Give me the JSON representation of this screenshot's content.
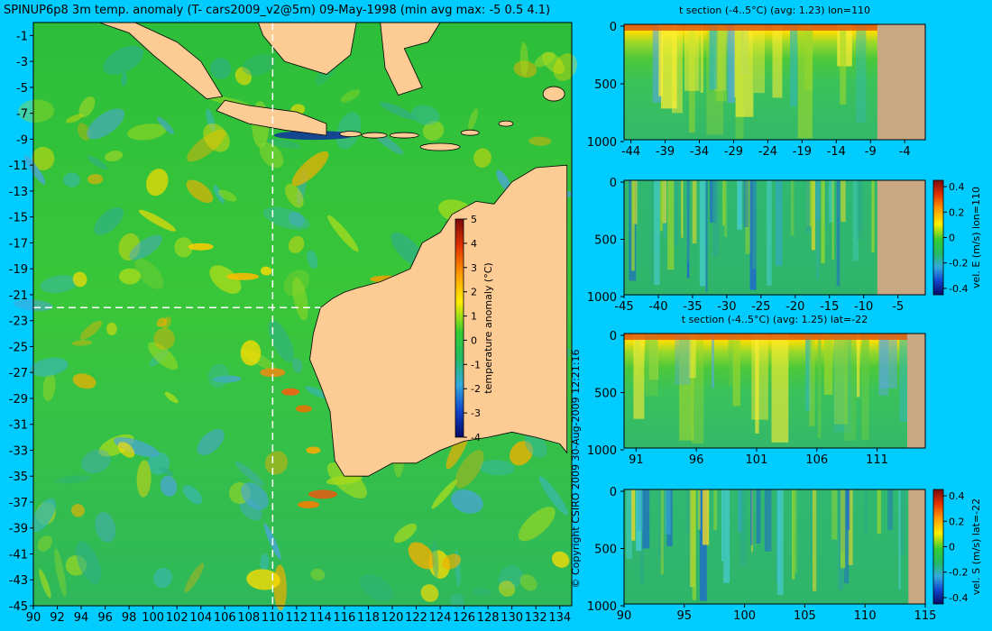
{
  "title": "SPINUP6p8 3m temp. anomaly (T- cars2009_v2@5m) 09-May-1998 (min avg max: -5 0.5 4.1)",
  "copyright": "© Copyright CSIRO 2009   30-Aug-2009 12:21:16",
  "colors": {
    "background": "#00ccff",
    "land": "#fdcb94",
    "section_land": "#c8a882",
    "ocean": "#36c636"
  },
  "chart_data": [
    {
      "type": "heatmap",
      "name": "map",
      "title": "SPINUP6p8 3m temp. anomaly (T- cars2009_v2@5m) 09-May-1998 (min avg max: -5 0.5 4.1)",
      "x_ticks": [
        "90",
        "92",
        "94",
        "96",
        "98",
        "100",
        "102",
        "104",
        "106",
        "108",
        "110",
        "112",
        "114",
        "116",
        "118",
        "120",
        "122",
        "124",
        "126",
        "128",
        "130",
        "132",
        "134"
      ],
      "y_ticks": [
        "-1",
        "-3",
        "-5",
        "-7",
        "-9",
        "-11",
        "-13",
        "-15",
        "-17",
        "-19",
        "-21",
        "-23",
        "-25",
        "-27",
        "-29",
        "-31",
        "-33",
        "-35",
        "-37",
        "-39",
        "-41",
        "-43",
        "-45"
      ],
      "xlim": [
        90,
        135
      ],
      "ylim": [
        -45,
        0
      ],
      "section_lon": 110,
      "section_lat": -22,
      "stats": {
        "min": -5,
        "avg": 0.5,
        "max": 4.1
      },
      "colorbar": {
        "label": "temperature anomaly (°C)",
        "ticks": [
          "5",
          "4",
          "3",
          "2",
          "1",
          "0",
          "-1",
          "-2",
          "-3",
          "-4"
        ],
        "range": [
          -4,
          5
        ]
      }
    },
    {
      "type": "heatmap",
      "name": "t-section-lon110",
      "title": "t section (-4..5°C)  (avg: 1.23)  lon=110",
      "x_ticks": [
        "-44",
        "-39",
        "-34",
        "-29",
        "-24",
        "-19",
        "-14",
        "-9",
        "-4"
      ],
      "y_ticks": [
        "0",
        "500",
        "1000"
      ],
      "xlim": [
        -45,
        -1
      ],
      "ylim": [
        1000,
        0
      ]
    },
    {
      "type": "heatmap",
      "name": "vel-e-lon110",
      "title": "",
      "x_ticks": [
        "-45",
        "-40",
        "-35",
        "-30",
        "-25",
        "-20",
        "-15",
        "-10",
        "-5"
      ],
      "y_ticks": [
        "0",
        "500",
        "1000"
      ],
      "xlim": [
        -45,
        -1
      ],
      "ylim": [
        1000,
        0
      ],
      "colorbar": {
        "label": "vel. E (m/s) lon=110",
        "ticks": [
          "0.4",
          "0.2",
          "0",
          "-0.2",
          "-0.4"
        ],
        "range": [
          -0.45,
          0.45
        ]
      }
    },
    {
      "type": "heatmap",
      "name": "t-section-lat-22",
      "title": "t section (-4..5°C)  (avg: 1.25)  lat=-22",
      "x_ticks": [
        "91",
        "96",
        "101",
        "106",
        "111"
      ],
      "y_ticks": [
        "0",
        "500",
        "1000"
      ],
      "xlim": [
        90,
        115
      ],
      "ylim": [
        1000,
        0
      ]
    },
    {
      "type": "heatmap",
      "name": "vel-s-lat-22",
      "title": "",
      "x_ticks": [
        "90",
        "95",
        "100",
        "105",
        "110",
        "115"
      ],
      "y_ticks": [
        "0",
        "500",
        "1000"
      ],
      "xlim": [
        90,
        115
      ],
      "ylim": [
        1000,
        0
      ],
      "colorbar": {
        "label": "vel. S (m/s) lat=-22",
        "ticks": [
          "0.4",
          "0.2",
          "0",
          "-0.2",
          "-0.4"
        ],
        "range": [
          -0.45,
          0.45
        ]
      }
    }
  ]
}
